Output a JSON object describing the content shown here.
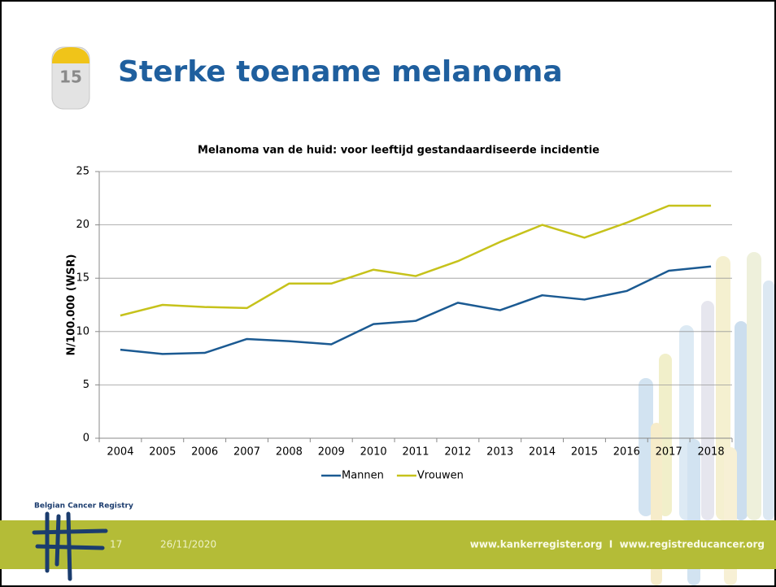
{
  "slide": {
    "title": "Sterke toename melanoma",
    "icon_label": "15",
    "logo_text": "Belgian Cancer Registry",
    "page_number": "17",
    "date": "26/11/2020",
    "footer_url": "www.kankerregister.org  I  www.registreducancer.org"
  },
  "chart_data": {
    "type": "line",
    "title": "Melanoma van de huid: voor leeftijd gestandaardiseerde incidentie",
    "y_label": "N/100.000 (WSR)",
    "categories": [
      "2004",
      "2005",
      "2006",
      "2007",
      "2008",
      "2009",
      "2010",
      "2011",
      "2012",
      "2013",
      "2014",
      "2015",
      "2016",
      "2017",
      "2018"
    ],
    "series": [
      {
        "name": "Mannen",
        "color": "#1b5a92",
        "values": [
          8.3,
          7.9,
          8.0,
          9.3,
          9.1,
          8.8,
          10.7,
          11.0,
          12.7,
          12.0,
          13.4,
          13.0,
          13.8,
          15.7,
          16.1
        ]
      },
      {
        "name": "Vrouwen",
        "color": "#c6c21b",
        "values": [
          11.5,
          12.5,
          12.3,
          12.2,
          14.5,
          14.5,
          15.8,
          15.2,
          16.6,
          18.4,
          20.0,
          18.8,
          20.2,
          21.8,
          21.8
        ]
      }
    ],
    "ylim": [
      0,
      25
    ],
    "yticks": [
      0,
      5,
      10,
      15,
      20,
      25
    ],
    "grid": true,
    "legend": "bottom"
  }
}
